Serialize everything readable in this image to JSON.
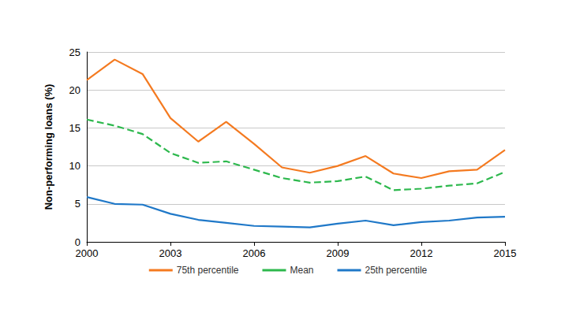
{
  "chart_data": {
    "type": "line",
    "y_label": "Non-performing loans (%)",
    "x": [
      2000,
      2001,
      2002,
      2003,
      2004,
      2005,
      2006,
      2007,
      2008,
      2009,
      2010,
      2011,
      2012,
      2013,
      2014,
      2015
    ],
    "series": [
      {
        "name": "75th percentile",
        "color": "#f47a20",
        "line_style": "solid",
        "values": [
          21.3,
          24.0,
          22.1,
          16.3,
          13.2,
          15.8,
          12.9,
          9.8,
          9.1,
          10.0,
          11.3,
          9.0,
          8.4,
          9.3,
          9.5,
          12.1
        ]
      },
      {
        "name": "Mean",
        "color": "#2db84d",
        "line_style": "dashed",
        "values": [
          16.1,
          15.3,
          14.2,
          11.7,
          10.4,
          10.6,
          9.5,
          8.4,
          7.8,
          8.0,
          8.6,
          6.8,
          7.0,
          7.4,
          7.7,
          9.2
        ]
      },
      {
        "name": "25th percentile",
        "color": "#1f78c8",
        "line_style": "solid",
        "values": [
          5.9,
          5.0,
          4.9,
          3.7,
          2.9,
          2.5,
          2.1,
          2.0,
          1.9,
          2.4,
          2.8,
          2.2,
          2.6,
          2.8,
          3.2,
          3.3
        ]
      }
    ],
    "xlim": [
      2000,
      2015
    ],
    "xticks": [
      2000,
      2003,
      2006,
      2009,
      2012,
      2015
    ],
    "ylim": [
      0,
      25
    ],
    "yticks": [
      0,
      5,
      10,
      15,
      20,
      25
    ],
    "grid": true,
    "legend": "bottom",
    "marker": "none"
  }
}
